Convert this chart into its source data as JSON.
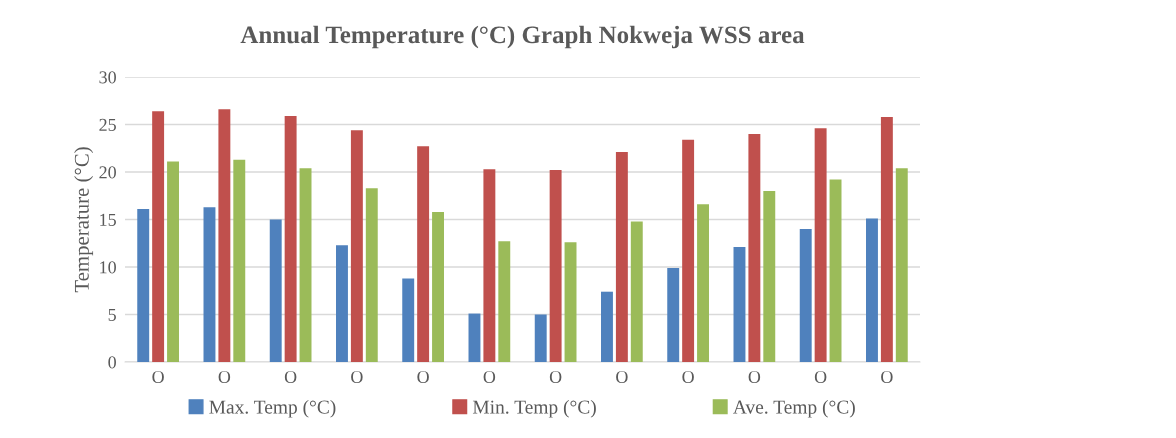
{
  "chart_data": {
    "type": "bar",
    "title": "Annual Temperature (°C) Graph Nokweja WSS area",
    "ylabel": "Temperature (°C)",
    "categories": [
      "O",
      "O",
      "O",
      "O",
      "O",
      "O",
      "O",
      "O",
      "O",
      "O",
      "O",
      "O"
    ],
    "series": [
      {
        "name": "Max. Temp (°C)",
        "color": "#4f81bd",
        "values": [
          16.1,
          16.3,
          15.0,
          12.3,
          8.8,
          5.1,
          5.0,
          7.4,
          9.9,
          12.1,
          14.0,
          15.1
        ]
      },
      {
        "name": "Min. Temp (°C)",
        "color": "#c0504d",
        "values": [
          26.4,
          26.6,
          25.9,
          24.4,
          22.7,
          20.3,
          20.2,
          22.1,
          23.4,
          24.0,
          24.6,
          25.8
        ]
      },
      {
        "name": "Ave. Temp (°C)",
        "color": "#9bbb59",
        "values": [
          21.1,
          21.3,
          20.4,
          18.3,
          15.8,
          12.7,
          12.6,
          14.8,
          16.6,
          18.0,
          19.2,
          20.4
        ]
      }
    ],
    "ylim": [
      0,
      30
    ],
    "yticks": [
      0,
      5,
      10,
      15,
      20,
      25,
      30
    ],
    "grid": "y",
    "legend": "bottom"
  }
}
